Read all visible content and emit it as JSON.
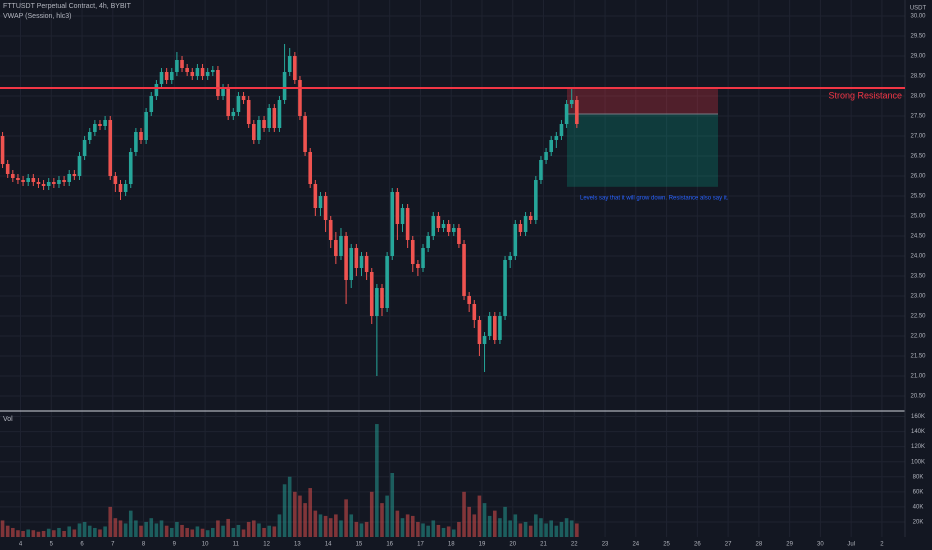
{
  "chart_data": {
    "type": "candlestick",
    "title": "FTTUSDT Perpetual Contract, 4h, BYBIT",
    "indicator_label": "VWAP (Session, hlc3)",
    "volume_label": "Vol",
    "currency_label": "USDT",
    "up_color": "#26a69a",
    "down_color": "#ef5350",
    "candles": {
      "open": [
        27.0,
        26.3,
        26.05,
        25.95,
        25.9,
        25.85,
        25.95,
        25.85,
        25.8,
        25.75,
        25.85,
        25.8,
        25.9,
        25.85,
        26.05,
        26.0,
        26.5,
        26.9,
        27.1,
        27.3,
        27.25,
        27.4,
        26.0,
        25.8,
        25.6,
        25.8,
        26.6,
        27.1,
        26.9,
        27.6,
        28.0,
        28.3,
        28.6,
        28.4,
        28.6,
        28.9,
        28.7,
        28.6,
        28.5,
        28.7,
        28.5,
        28.6,
        28.65,
        28.0,
        28.2,
        27.5,
        27.6,
        28.0,
        27.9,
        27.3,
        26.9,
        27.4,
        27.2,
        27.7,
        27.2,
        27.9,
        28.6,
        29.0,
        28.4,
        27.5,
        26.6,
        25.8,
        25.2,
        25.5,
        24.9,
        24.4,
        24.0,
        24.5,
        23.4,
        24.2,
        23.7,
        24.0,
        23.6,
        22.5,
        23.2,
        22.7,
        24.0,
        25.6,
        24.8,
        25.2,
        24.4,
        23.8,
        23.7,
        24.2,
        24.5,
        25.0,
        24.7,
        24.8,
        24.6,
        24.7,
        24.3,
        23.0,
        22.8,
        22.4,
        21.8,
        22.0,
        22.5,
        21.9,
        22.5,
        23.9,
        24.0,
        24.8,
        24.6,
        25.0,
        24.9,
        25.9,
        26.4,
        26.6,
        26.9,
        27.0,
        27.3,
        27.8,
        27.9
      ],
      "high": [
        27.1,
        26.4,
        26.15,
        26.05,
        26.0,
        26.05,
        26.05,
        25.95,
        25.9,
        25.95,
        25.95,
        26.0,
        26.0,
        26.15,
        26.15,
        26.6,
        27.0,
        27.2,
        27.4,
        27.4,
        27.5,
        27.5,
        26.1,
        25.9,
        25.9,
        26.7,
        27.2,
        27.2,
        27.7,
        28.1,
        28.4,
        28.7,
        28.7,
        28.7,
        29.1,
        29.0,
        28.8,
        28.7,
        28.8,
        28.8,
        28.7,
        28.75,
        28.75,
        28.3,
        28.3,
        27.7,
        28.1,
        28.1,
        28.0,
        27.4,
        27.5,
        27.5,
        27.8,
        27.8,
        28.0,
        29.3,
        29.2,
        29.1,
        28.5,
        27.6,
        26.7,
        25.9,
        25.6,
        25.6,
        25.0,
        24.6,
        24.7,
        24.6,
        24.3,
        24.3,
        24.1,
        24.1,
        23.7,
        23.3,
        23.3,
        24.1,
        25.7,
        25.7,
        25.3,
        25.3,
        24.5,
        23.9,
        24.3,
        24.6,
        25.1,
        25.1,
        24.9,
        24.9,
        24.8,
        24.8,
        24.4,
        23.1,
        22.9,
        22.5,
        22.1,
        22.6,
        22.6,
        22.6,
        24.0,
        24.1,
        24.9,
        24.9,
        25.1,
        25.1,
        26.0,
        26.5,
        26.7,
        27.0,
        27.1,
        27.4,
        27.9,
        28.2,
        28.0
      ],
      "low": [
        26.2,
        25.95,
        25.85,
        25.8,
        25.75,
        25.75,
        25.75,
        25.7,
        25.65,
        25.65,
        25.7,
        25.7,
        25.75,
        25.75,
        25.9,
        25.9,
        26.4,
        26.8,
        27.0,
        27.15,
        27.15,
        25.9,
        25.6,
        25.4,
        25.5,
        25.7,
        26.5,
        26.8,
        26.8,
        27.5,
        27.9,
        28.2,
        28.3,
        28.3,
        28.5,
        28.6,
        28.5,
        28.4,
        28.4,
        28.4,
        28.4,
        28.5,
        27.9,
        27.9,
        27.4,
        27.4,
        27.5,
        27.8,
        27.2,
        26.8,
        26.8,
        27.1,
        27.1,
        27.1,
        27.1,
        27.8,
        28.5,
        28.3,
        27.4,
        26.5,
        25.7,
        25.0,
        25.0,
        24.6,
        24.2,
        23.8,
        23.9,
        22.8,
        23.2,
        23.5,
        23.5,
        23.4,
        22.3,
        21.0,
        22.5,
        22.6,
        23.9,
        24.4,
        24.6,
        24.2,
        23.6,
        23.5,
        23.6,
        24.1,
        24.4,
        24.6,
        24.6,
        24.5,
        24.5,
        24.2,
        22.9,
        22.6,
        22.2,
        21.5,
        21.1,
        21.9,
        21.8,
        21.8,
        22.4,
        23.7,
        23.9,
        24.5,
        24.5,
        24.8,
        24.8,
        25.8,
        26.3,
        26.5,
        26.7,
        26.9,
        27.2,
        27.7,
        27.2
      ],
      "close": [
        26.3,
        26.05,
        25.95,
        25.9,
        25.85,
        25.95,
        25.85,
        25.8,
        25.75,
        25.85,
        25.8,
        25.9,
        25.85,
        26.05,
        26.0,
        26.5,
        26.9,
        27.1,
        27.3,
        27.25,
        27.4,
        26.0,
        25.8,
        25.6,
        25.8,
        26.6,
        27.1,
        26.9,
        27.6,
        28.0,
        28.3,
        28.6,
        28.4,
        28.6,
        28.9,
        28.7,
        28.6,
        28.5,
        28.7,
        28.5,
        28.6,
        28.65,
        28.0,
        28.2,
        27.5,
        27.6,
        28.0,
        27.9,
        27.3,
        26.9,
        27.4,
        27.2,
        27.7,
        27.2,
        27.9,
        28.6,
        29.0,
        28.4,
        27.5,
        26.6,
        25.8,
        25.2,
        25.5,
        24.9,
        24.4,
        24.0,
        24.5,
        23.4,
        24.2,
        23.7,
        24.0,
        23.6,
        22.5,
        23.2,
        22.7,
        24.0,
        25.6,
        24.8,
        25.2,
        24.4,
        23.8,
        23.7,
        24.2,
        24.5,
        25.0,
        24.7,
        24.8,
        24.6,
        24.7,
        24.3,
        23.0,
        22.8,
        22.4,
        21.8,
        22.0,
        22.5,
        21.9,
        22.5,
        23.9,
        24.0,
        24.8,
        24.6,
        25.0,
        24.9,
        25.9,
        26.4,
        26.6,
        26.9,
        27.0,
        27.3,
        27.8,
        27.9,
        27.3
      ],
      "volume": [
        22000,
        15000,
        12000,
        9000,
        8000,
        10000,
        9000,
        7000,
        8000,
        11000,
        9000,
        12000,
        8000,
        14000,
        10000,
        18000,
        20000,
        15000,
        12000,
        10000,
        14000,
        40000,
        25000,
        22000,
        18000,
        35000,
        22000,
        15000,
        20000,
        25000,
        18000,
        22000,
        15000,
        12000,
        20000,
        16000,
        12000,
        10000,
        14000,
        11000,
        9000,
        12000,
        22000,
        15000,
        24000,
        12000,
        16000,
        10000,
        20000,
        22000,
        18000,
        12000,
        15000,
        14000,
        30000,
        70000,
        80000,
        60000,
        55000,
        45000,
        65000,
        35000,
        30000,
        28000,
        25000,
        30000,
        22000,
        50000,
        30000,
        20000,
        18000,
        20000,
        60000,
        150000,
        45000,
        55000,
        85000,
        35000,
        25000,
        30000,
        28000,
        20000,
        18000,
        15000,
        22000,
        16000,
        12000,
        14000,
        10000,
        20000,
        60000,
        40000,
        30000,
        55000,
        45000,
        28000,
        35000,
        25000,
        40000,
        22000,
        30000,
        18000,
        20000,
        15000,
        30000,
        25000,
        18000,
        22000,
        15000,
        20000,
        25000,
        22000,
        18000
      ]
    },
    "xlim": [
      -0.5,
      176
    ],
    "xticks": [
      {
        "value": 3.5,
        "label": "4"
      },
      {
        "value": 9.5,
        "label": "5"
      },
      {
        "value": 15.5,
        "label": "6"
      },
      {
        "value": 21.5,
        "label": "7"
      },
      {
        "value": 27.5,
        "label": "8"
      },
      {
        "value": 33.5,
        "label": "9"
      },
      {
        "value": 39.5,
        "label": "10"
      },
      {
        "value": 45.5,
        "label": "11"
      },
      {
        "value": 51.5,
        "label": "12"
      },
      {
        "value": 57.5,
        "label": "13"
      },
      {
        "value": 63.5,
        "label": "14"
      },
      {
        "value": 69.5,
        "label": "15"
      },
      {
        "value": 75.5,
        "label": "16"
      },
      {
        "value": 81.5,
        "label": "17"
      },
      {
        "value": 87.5,
        "label": "18"
      },
      {
        "value": 93.5,
        "label": "19"
      },
      {
        "value": 99.5,
        "label": "20"
      },
      {
        "value": 105.5,
        "label": "21"
      },
      {
        "value": 111.5,
        "label": "22"
      },
      {
        "value": 117.5,
        "label": "23"
      },
      {
        "value": 123.5,
        "label": "24"
      },
      {
        "value": 129.5,
        "label": "25"
      },
      {
        "value": 135.5,
        "label": "26"
      },
      {
        "value": 141.5,
        "label": "27"
      },
      {
        "value": 147.5,
        "label": "28"
      },
      {
        "value": 153.5,
        "label": "29"
      },
      {
        "value": 159.5,
        "label": "30"
      },
      {
        "value": 165.5,
        "label": "Jul"
      },
      {
        "value": 171.5,
        "label": "2"
      }
    ],
    "ylim": [
      20.15,
      30.4
    ],
    "yticks": [
      {
        "value": 20.5,
        "label": "20.50"
      },
      {
        "value": 21,
        "label": "21.00"
      },
      {
        "value": 21.5,
        "label": "21.50"
      },
      {
        "value": 22,
        "label": "22.00"
      },
      {
        "value": 22.5,
        "label": "22.50"
      },
      {
        "value": 23,
        "label": "23.00"
      },
      {
        "value": 23.5,
        "label": "23.50"
      },
      {
        "value": 24,
        "label": "24.00"
      },
      {
        "value": 24.5,
        "label": "24.50"
      },
      {
        "value": 25,
        "label": "25.00"
      },
      {
        "value": 25.5,
        "label": "25.50"
      },
      {
        "value": 26,
        "label": "26.00"
      },
      {
        "value": 26.5,
        "label": "26.50"
      },
      {
        "value": 27,
        "label": "27.00"
      },
      {
        "value": 27.5,
        "label": "27.50"
      },
      {
        "value": 28,
        "label": "28.00"
      },
      {
        "value": 28.5,
        "label": "28.50"
      },
      {
        "value": 29,
        "label": "29.00"
      },
      {
        "value": 29.5,
        "label": "29.50"
      },
      {
        "value": 30,
        "label": "30.00"
      }
    ],
    "volume_lim": [
      0,
      166000
    ],
    "volume_ticks": [
      {
        "value": 20000,
        "label": "20K"
      },
      {
        "value": 40000,
        "label": "40K"
      },
      {
        "value": 60000,
        "label": "60K"
      },
      {
        "value": 80000,
        "label": "80K"
      },
      {
        "value": 100000,
        "label": "100K"
      },
      {
        "value": 120000,
        "label": "120K"
      },
      {
        "value": 140000,
        "label": "140K"
      },
      {
        "value": 160000,
        "label": "160K"
      }
    ],
    "grid": true,
    "resistance": {
      "label": "Strong Resistance",
      "value": 28.2,
      "color": "#f23645"
    },
    "position": {
      "stop": 28.2,
      "entry": 27.55,
      "target": 25.73
    },
    "annotation": "Levels say that it will grow down. Resistance also say it."
  }
}
